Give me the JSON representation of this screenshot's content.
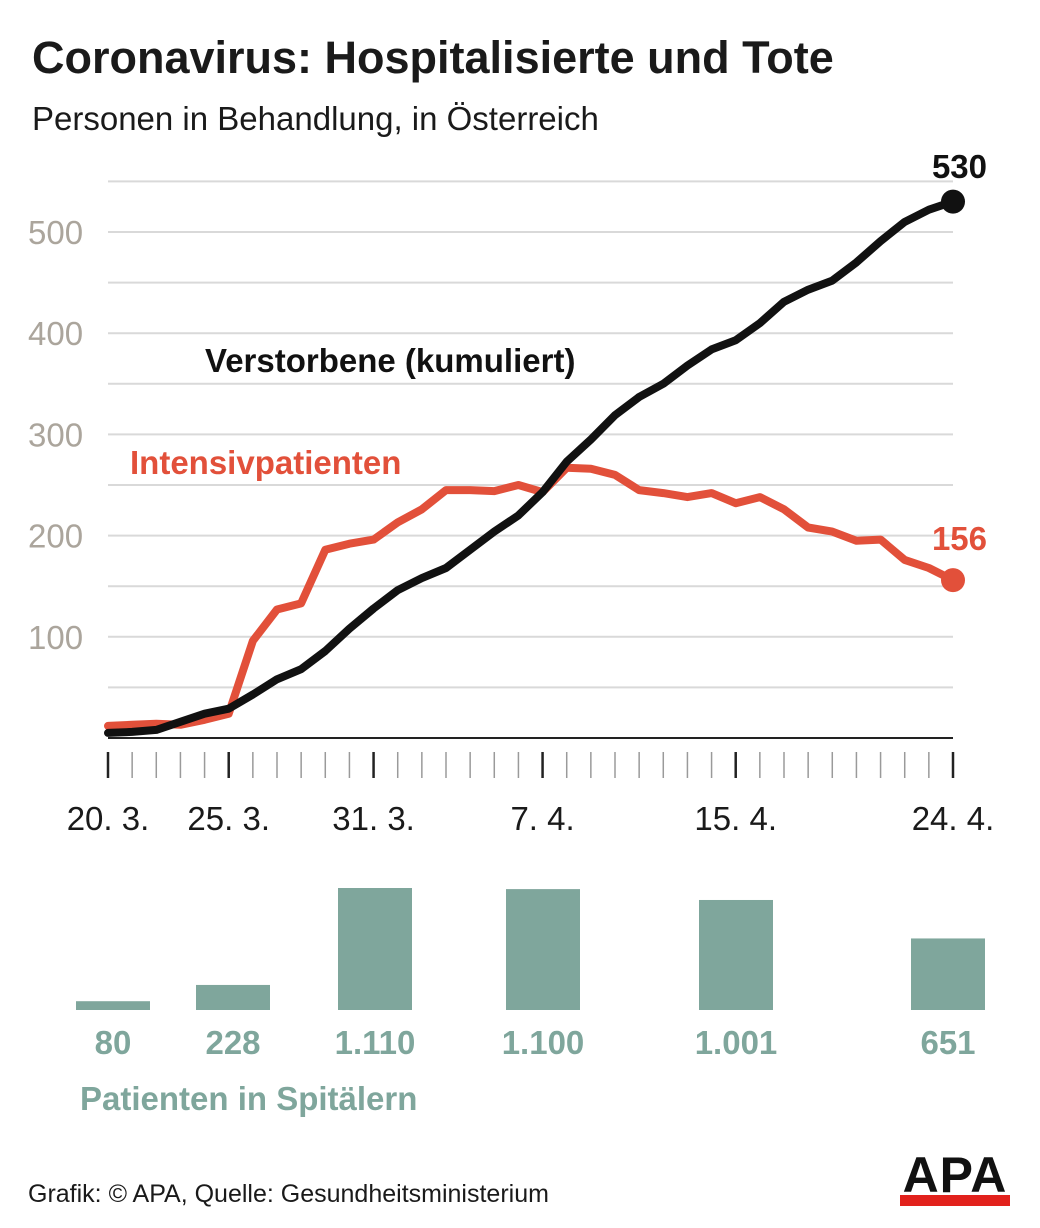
{
  "title": "Coronavirus: Hospitalisierte und Tote",
  "subtitle": "Personen in Behandlung, in Österreich",
  "footer": "Grafik: © APA, Quelle: Gesundheitsministerium",
  "logo": "APA",
  "colors": {
    "deaths": "#111111",
    "icu": "#e2503a",
    "hospital": "#7fa69c",
    "grid": "#d9d9d9",
    "ytick": "#aba59c",
    "logo_red": "#e2211c"
  },
  "chart_data": [
    {
      "type": "line",
      "title": "",
      "xlabel": "",
      "ylabel": "",
      "ylim": [
        0,
        530
      ],
      "yticks": [
        100,
        200,
        300,
        400,
        500
      ],
      "x": [
        "20.3.",
        "21.3.",
        "22.3.",
        "23.3.",
        "24.3.",
        "25.3.",
        "26.3.",
        "27.3.",
        "28.3.",
        "29.3.",
        "30.3.",
        "31.3.",
        "1.4.",
        "2.4.",
        "3.4.",
        "4.4.",
        "5.4.",
        "6.4.",
        "7.4.",
        "8.4.",
        "9.4.",
        "10.4.",
        "11.4.",
        "12.4.",
        "13.4.",
        "14.4.",
        "15.4.",
        "16.4.",
        "17.4.",
        "18.4.",
        "19.4.",
        "20.4.",
        "21.4.",
        "22.4.",
        "23.4.",
        "24.4."
      ],
      "xtick_labels": [
        {
          "label": "20. 3.",
          "index": 0
        },
        {
          "label": "25. 3.",
          "index": 5
        },
        {
          "label": "31. 3.",
          "index": 11
        },
        {
          "label": "7. 4.",
          "index": 18
        },
        {
          "label": "15. 4.",
          "index": 26
        },
        {
          "label": "24. 4.",
          "index": 35
        }
      ],
      "series": [
        {
          "name": "Verstorbene (kumuliert)",
          "color": "#111111",
          "values": [
            5,
            6,
            8,
            16,
            24,
            29,
            43,
            58,
            68,
            86,
            108,
            128,
            146,
            158,
            168,
            186,
            204,
            220,
            243,
            273,
            295,
            319,
            337,
            350,
            368,
            384,
            393,
            410,
            431,
            443,
            452,
            470,
            491,
            510,
            522,
            530
          ],
          "end_label": "530"
        },
        {
          "name": "Intensivpatienten",
          "color": "#e2503a",
          "values": [
            12,
            13,
            14,
            13,
            18,
            24,
            96,
            127,
            133,
            186,
            192,
            196,
            213,
            226,
            245,
            245,
            244,
            250,
            243,
            267,
            266,
            260,
            245,
            242,
            238,
            242,
            232,
            238,
            226,
            208,
            204,
            195,
            196,
            176,
            168,
            156
          ],
          "end_label": "156"
        }
      ]
    },
    {
      "type": "bar",
      "title": "Patienten in Spitälern",
      "categories": [
        "20.3.",
        "25.3.",
        "31.3.",
        "7.4.",
        "15.4.",
        "24.4."
      ],
      "values": [
        80,
        228,
        1110,
        1100,
        1001,
        651
      ],
      "value_labels": [
        "80",
        "228",
        "1.110",
        "1.100",
        "1.001",
        "651"
      ]
    }
  ]
}
